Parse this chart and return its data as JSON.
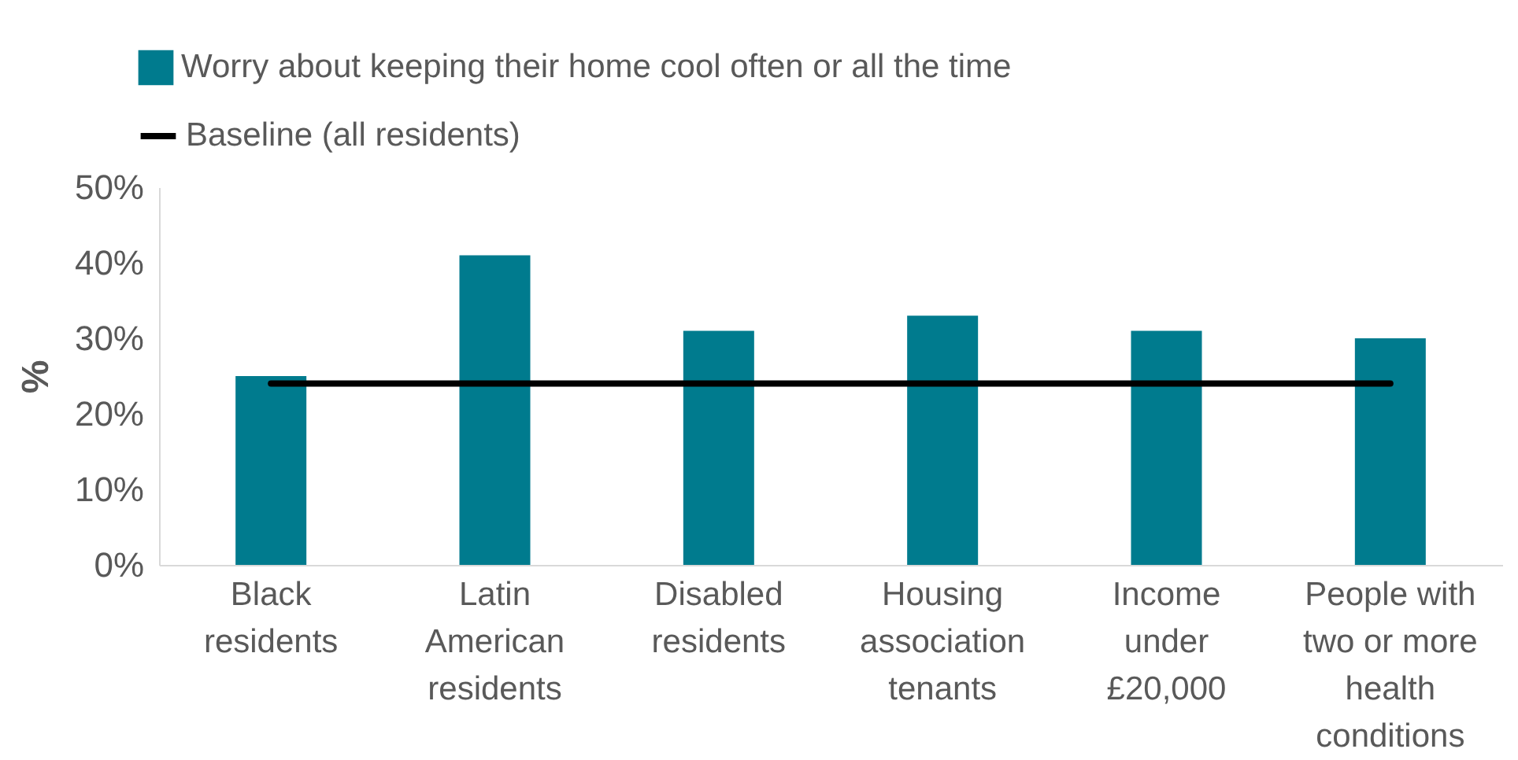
{
  "chart_data": {
    "type": "bar",
    "ylabel": "%",
    "categories": [
      "Black residents",
      "Latin American residents",
      "Disabled residents",
      "Housing association tenants",
      "Income under £20,000",
      "People with two or more health conditions"
    ],
    "series": [
      {
        "name": "Worry about keeping their home cool often or all the time",
        "color": "#007b8e",
        "values": [
          25,
          41,
          31,
          33,
          31,
          30
        ]
      },
      {
        "name": "Baseline (all residents)",
        "type": "line",
        "color": "#000000",
        "values": [
          24,
          24,
          24,
          24,
          24,
          24
        ]
      }
    ],
    "ylim": [
      0,
      50
    ],
    "yticks": [
      {
        "value": 0,
        "label": "0%"
      },
      {
        "value": 10,
        "label": "10%"
      },
      {
        "value": 20,
        "label": "20%"
      },
      {
        "value": 30,
        "label": "30%"
      },
      {
        "value": 40,
        "label": "40%"
      },
      {
        "value": 50,
        "label": "50%"
      }
    ],
    "grid": false,
    "legend": "top left",
    "marker": "none",
    "line_style": "solid"
  }
}
